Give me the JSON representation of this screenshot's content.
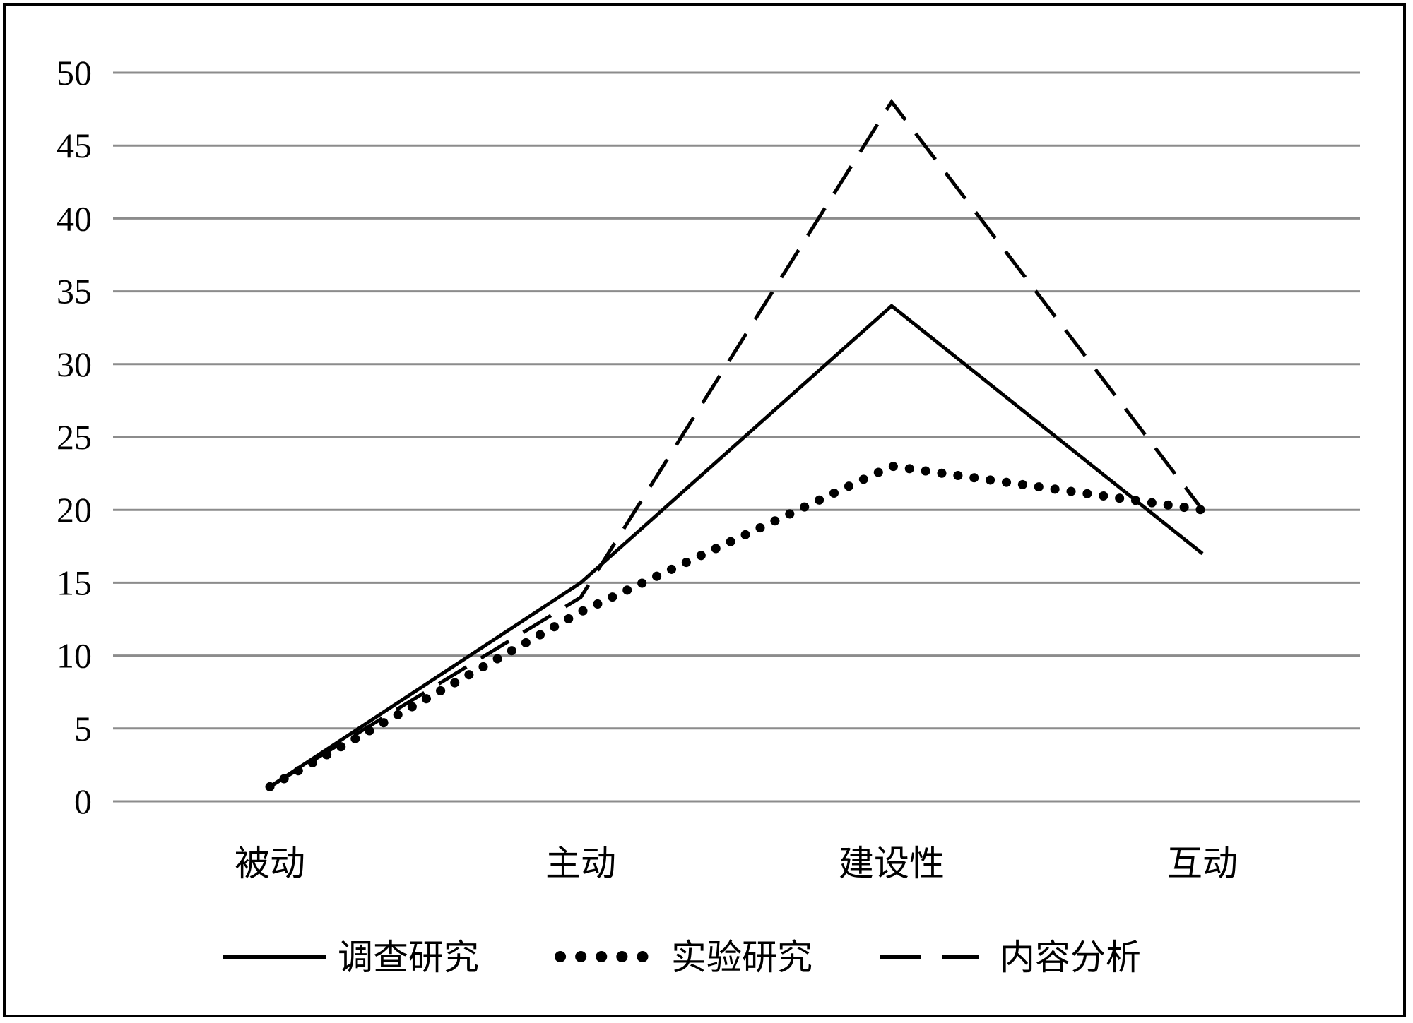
{
  "chart_data": {
    "type": "line",
    "title": "",
    "xlabel": "",
    "ylabel": "",
    "categories": [
      "被动",
      "主动",
      "建设性",
      "互动"
    ],
    "ylim": [
      0,
      50
    ],
    "yticks": [
      0,
      5,
      10,
      15,
      20,
      25,
      30,
      35,
      40,
      45,
      50
    ],
    "grid": true,
    "legend_position": "bottom",
    "series": [
      {
        "name": "调查研究",
        "style": "solid",
        "values": [
          1,
          15,
          34,
          17
        ]
      },
      {
        "name": "实验研究",
        "style": "dotted",
        "values": [
          1,
          13,
          23,
          20
        ]
      },
      {
        "name": "内容分析",
        "style": "dashed",
        "values": [
          1,
          14,
          48,
          20
        ]
      }
    ],
    "colors": {
      "line": "#000000",
      "grid": "#8c8c8c"
    }
  }
}
